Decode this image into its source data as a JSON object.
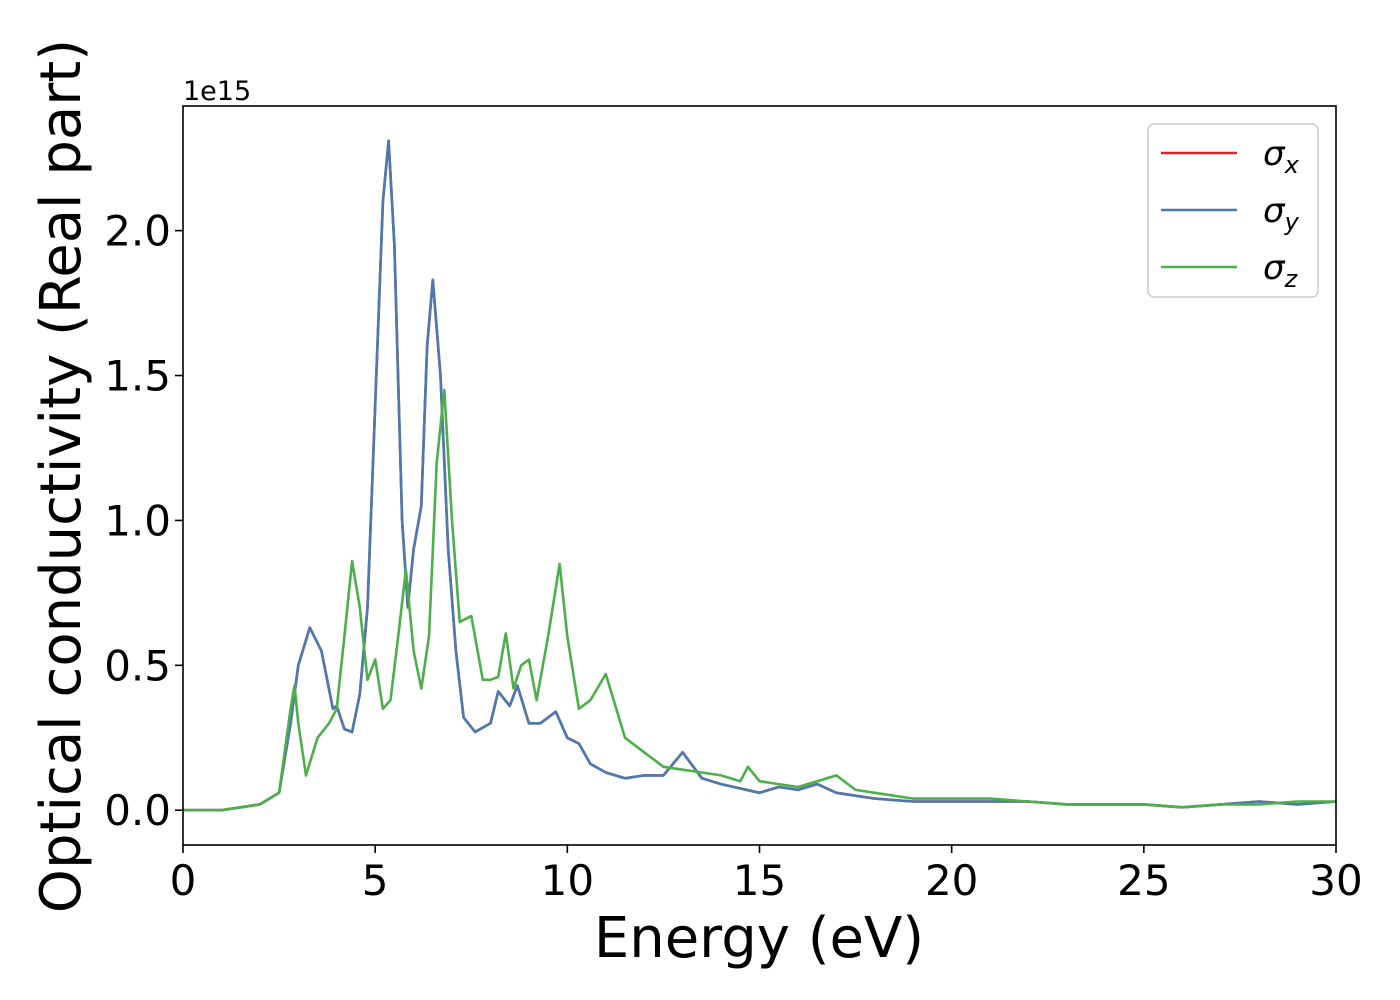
{
  "chart_data": {
    "type": "line",
    "xlabel": "Energy (eV)",
    "ylabel": "Optical conductivity (Real part)",
    "y_offset_label": "1e15",
    "xlim": [
      0,
      30
    ],
    "ylim": [
      -0.12,
      2.43
    ],
    "x_ticks": [
      0,
      5,
      10,
      15,
      20,
      25,
      30
    ],
    "x_tick_labels": [
      "0",
      "5",
      "10",
      "15",
      "20",
      "25",
      "30"
    ],
    "y_ticks": [
      0.0,
      0.5,
      1.0,
      1.5,
      2.0
    ],
    "y_tick_labels": [
      "0.0",
      "0.5",
      "1.0",
      "1.5",
      "2.0"
    ],
    "grid": false,
    "legend_position": "top-right",
    "series": [
      {
        "name": "σx",
        "legend_symbol": "σ",
        "legend_sub": "x",
        "color": "#d62728",
        "x": [
          0,
          1,
          2,
          2.5,
          2.8,
          3.0,
          3.3,
          3.6,
          3.9,
          4.0,
          4.2,
          4.4,
          4.6,
          4.8,
          5.0,
          5.2,
          5.35,
          5.5,
          5.7,
          5.85,
          6.0,
          6.2,
          6.35,
          6.5,
          6.7,
          6.9,
          7.1,
          7.3,
          7.6,
          8.0,
          8.2,
          8.5,
          8.7,
          9.0,
          9.3,
          9.7,
          10.0,
          10.3,
          10.6,
          11.0,
          11.5,
          12.0,
          12.5,
          13.0,
          13.5,
          14.0,
          15.0,
          15.5,
          16.0,
          16.5,
          17.0,
          18.0,
          19.0,
          20.0,
          21.0,
          22.0,
          23.0,
          24.0,
          25.0,
          26.0,
          27.0,
          28.0,
          29.0,
          30.0
        ],
        "values": [
          0.0,
          0.0,
          0.02,
          0.06,
          0.3,
          0.5,
          0.63,
          0.55,
          0.35,
          0.36,
          0.28,
          0.27,
          0.4,
          0.7,
          1.4,
          2.1,
          2.31,
          1.95,
          1.0,
          0.7,
          0.9,
          1.05,
          1.6,
          1.83,
          1.5,
          0.9,
          0.55,
          0.32,
          0.27,
          0.3,
          0.41,
          0.36,
          0.43,
          0.3,
          0.3,
          0.34,
          0.25,
          0.23,
          0.16,
          0.13,
          0.11,
          0.12,
          0.12,
          0.2,
          0.11,
          0.09,
          0.06,
          0.08,
          0.07,
          0.09,
          0.06,
          0.04,
          0.03,
          0.03,
          0.03,
          0.03,
          0.02,
          0.02,
          0.02,
          0.01,
          0.02,
          0.03,
          0.02,
          0.03
        ]
      },
      {
        "name": "σy",
        "legend_symbol": "σ",
        "legend_sub": "y",
        "color": "#4a7ab0",
        "x": [
          0,
          1,
          2,
          2.5,
          2.8,
          3.0,
          3.3,
          3.6,
          3.9,
          4.0,
          4.2,
          4.4,
          4.6,
          4.8,
          5.0,
          5.2,
          5.35,
          5.5,
          5.7,
          5.85,
          6.0,
          6.2,
          6.35,
          6.5,
          6.7,
          6.9,
          7.1,
          7.3,
          7.6,
          8.0,
          8.2,
          8.5,
          8.7,
          9.0,
          9.3,
          9.7,
          10.0,
          10.3,
          10.6,
          11.0,
          11.5,
          12.0,
          12.5,
          13.0,
          13.5,
          14.0,
          15.0,
          15.5,
          16.0,
          16.5,
          17.0,
          18.0,
          19.0,
          20.0,
          21.0,
          22.0,
          23.0,
          24.0,
          25.0,
          26.0,
          27.0,
          28.0,
          29.0,
          30.0
        ],
        "values": [
          0.0,
          0.0,
          0.02,
          0.06,
          0.3,
          0.5,
          0.63,
          0.55,
          0.35,
          0.36,
          0.28,
          0.27,
          0.4,
          0.7,
          1.4,
          2.1,
          2.31,
          1.95,
          1.0,
          0.7,
          0.9,
          1.05,
          1.6,
          1.83,
          1.5,
          0.9,
          0.55,
          0.32,
          0.27,
          0.3,
          0.41,
          0.36,
          0.43,
          0.3,
          0.3,
          0.34,
          0.25,
          0.23,
          0.16,
          0.13,
          0.11,
          0.12,
          0.12,
          0.2,
          0.11,
          0.09,
          0.06,
          0.08,
          0.07,
          0.09,
          0.06,
          0.04,
          0.03,
          0.03,
          0.03,
          0.03,
          0.02,
          0.02,
          0.02,
          0.01,
          0.02,
          0.03,
          0.02,
          0.03
        ]
      },
      {
        "name": "σz",
        "legend_symbol": "σ",
        "legend_sub": "z",
        "color": "#4daf4a",
        "x": [
          0,
          1,
          2,
          2.5,
          2.8,
          2.9,
          3.0,
          3.2,
          3.5,
          3.8,
          4.0,
          4.2,
          4.4,
          4.6,
          4.8,
          5.0,
          5.2,
          5.4,
          5.6,
          5.8,
          6.0,
          6.2,
          6.4,
          6.6,
          6.8,
          7.0,
          7.2,
          7.5,
          7.8,
          8.0,
          8.2,
          8.4,
          8.6,
          8.8,
          9.0,
          9.2,
          9.5,
          9.8,
          10.0,
          10.3,
          10.6,
          11.0,
          11.5,
          12.0,
          12.5,
          13.0,
          13.5,
          14.0,
          14.5,
          14.7,
          15.0,
          15.5,
          16.0,
          16.5,
          17.0,
          17.5,
          18.0,
          19.0,
          20.0,
          21.0,
          22.0,
          23.0,
          24.0,
          25.0,
          26.0,
          27.0,
          28.0,
          29.0,
          30.0
        ],
        "values": [
          0.0,
          0.0,
          0.02,
          0.06,
          0.35,
          0.43,
          0.3,
          0.12,
          0.25,
          0.3,
          0.35,
          0.6,
          0.86,
          0.7,
          0.45,
          0.52,
          0.35,
          0.38,
          0.6,
          0.83,
          0.55,
          0.42,
          0.6,
          1.2,
          1.45,
          1.0,
          0.65,
          0.67,
          0.45,
          0.45,
          0.46,
          0.61,
          0.42,
          0.5,
          0.52,
          0.38,
          0.6,
          0.85,
          0.6,
          0.35,
          0.38,
          0.47,
          0.25,
          0.2,
          0.15,
          0.14,
          0.13,
          0.12,
          0.1,
          0.15,
          0.1,
          0.09,
          0.08,
          0.1,
          0.12,
          0.07,
          0.06,
          0.04,
          0.04,
          0.04,
          0.03,
          0.02,
          0.02,
          0.02,
          0.01,
          0.02,
          0.02,
          0.03,
          0.03
        ]
      }
    ]
  }
}
